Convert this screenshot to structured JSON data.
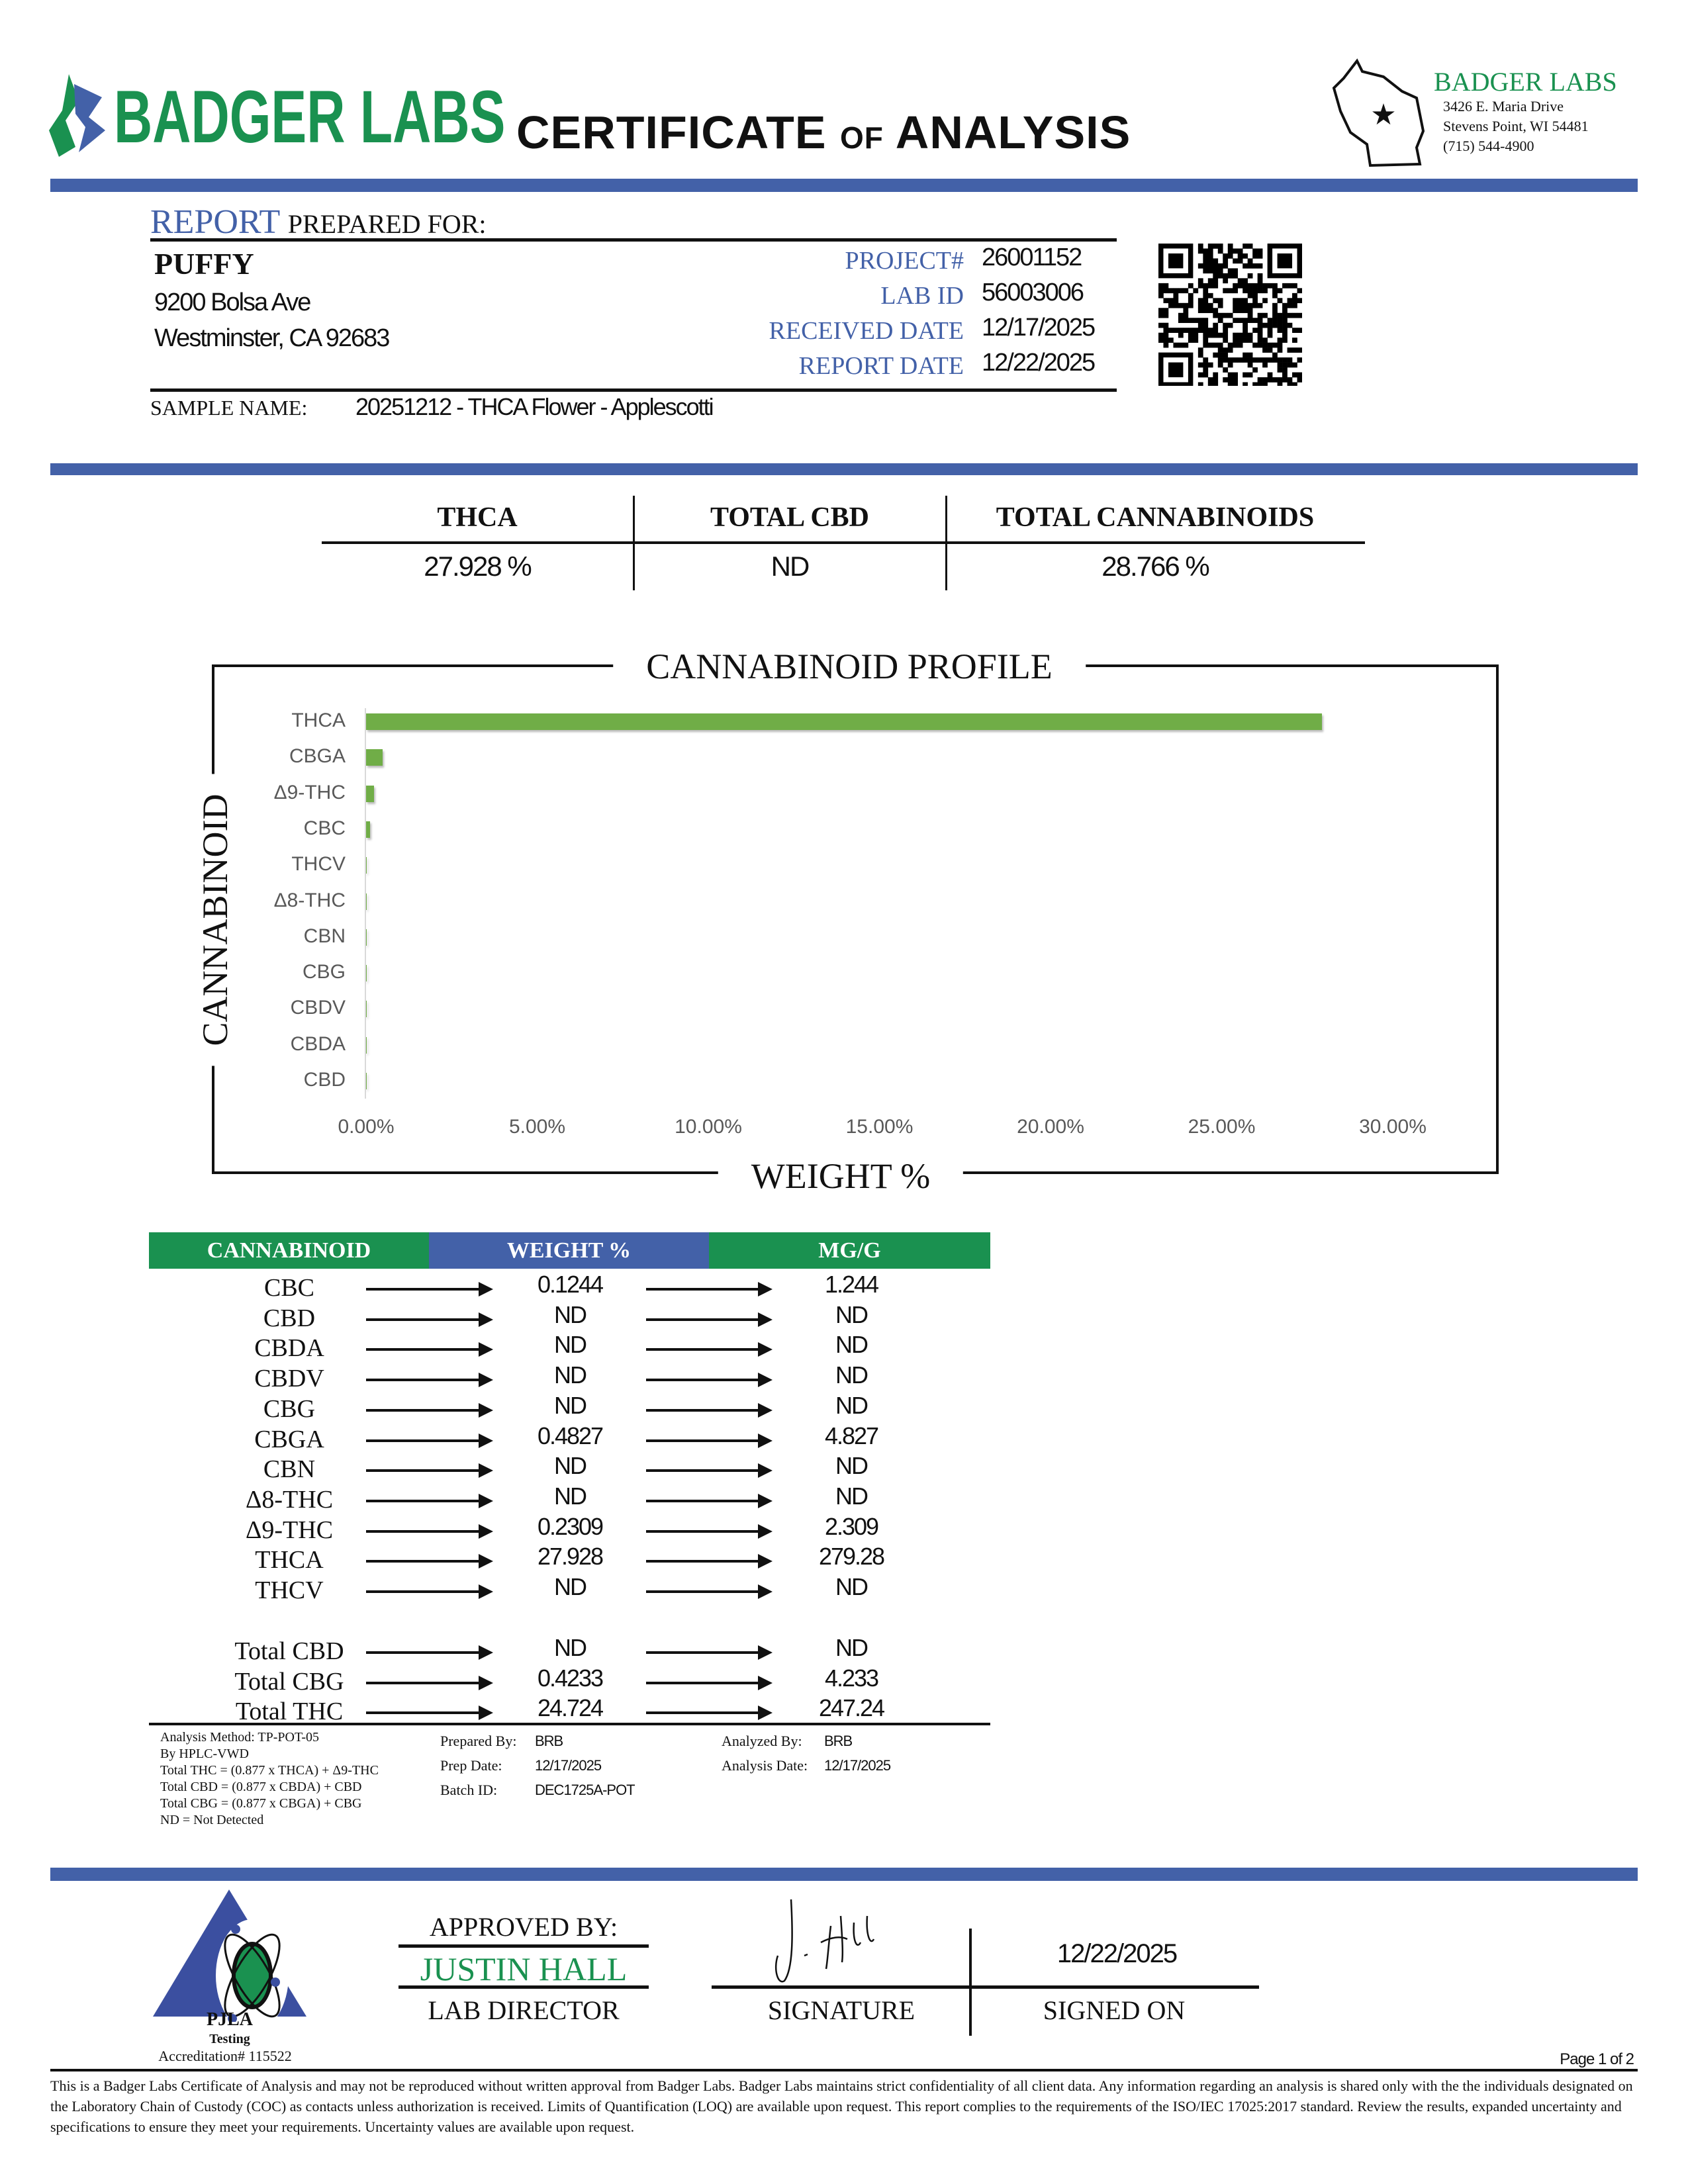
{
  "header": {
    "brand": "BADGER LABS",
    "title_a": "CERTIFICATE",
    "title_of": "OF",
    "title_b": "ANALYSIS",
    "address": {
      "name": "BADGER LABS",
      "street": "3426 E. Maria Drive",
      "city": "Stevens Point, WI 54481",
      "phone": "(715) 544-4900"
    }
  },
  "report": {
    "label_a": "REPORT",
    "label_b": "PREPARED FOR:",
    "client": "PUFFY",
    "address1": "9200 Bolsa Ave",
    "address2": "Westminster, CA 92683",
    "fields": [
      {
        "label": "PROJECT#",
        "value": "26001152"
      },
      {
        "label": "LAB ID",
        "value": "56003006"
      },
      {
        "label": "RECEIVED DATE",
        "value": "12/17/2025"
      },
      {
        "label": "REPORT DATE",
        "value": "12/22/2025"
      }
    ],
    "sample_label": "SAMPLE NAME:",
    "sample_name": "20251212 - THCA Flower - Applescotti"
  },
  "summary": [
    {
      "label": "THCA",
      "value": "27.928 %"
    },
    {
      "label": "TOTAL CBD",
      "value": "ND"
    },
    {
      "label": "TOTAL CANNABINOIDS",
      "value": "28.766 %"
    }
  ],
  "chart_data": {
    "type": "bar",
    "orientation": "horizontal",
    "title": "CANNABINOID PROFILE",
    "xlabel": "WEIGHT %",
    "ylabel": "CANNABINOID",
    "categories": [
      "THCA",
      "CBGA",
      "Δ9-THC",
      "CBC",
      "THCV",
      "Δ8-THC",
      "CBN",
      "CBG",
      "CBDV",
      "CBDA",
      "CBD"
    ],
    "values": [
      27.928,
      0.4827,
      0.2309,
      0.1244,
      0,
      0,
      0,
      0,
      0,
      0,
      0
    ],
    "xlim": [
      0,
      30
    ],
    "ticks": [
      "0.00%",
      "5.00%",
      "10.00%",
      "15.00%",
      "20.00%",
      "25.00%",
      "30.00%"
    ],
    "bar_color": "#70ad47",
    "grid": false,
    "legend": "none"
  },
  "table": {
    "headers": [
      "CANNABINOID",
      "WEIGHT %",
      "MG/G"
    ],
    "header_colors": [
      "#1a9150",
      "#4361a8",
      "#1a9150"
    ],
    "rows": [
      [
        "CBC",
        "0.1244",
        "1.244"
      ],
      [
        "CBD",
        "ND",
        "ND"
      ],
      [
        "CBDA",
        "ND",
        "ND"
      ],
      [
        "CBDV",
        "ND",
        "ND"
      ],
      [
        "CBG",
        "ND",
        "ND"
      ],
      [
        "CBGA",
        "0.4827",
        "4.827"
      ],
      [
        "CBN",
        "ND",
        "ND"
      ],
      [
        "Δ8-THC",
        "ND",
        "ND"
      ],
      [
        "Δ9-THC",
        "0.2309",
        "2.309"
      ],
      [
        "THCA",
        "27.928",
        "279.28"
      ],
      [
        "THCV",
        "ND",
        "ND"
      ]
    ],
    "totals": [
      [
        "Total CBD",
        "ND",
        "ND"
      ],
      [
        "Total CBG",
        "0.4233",
        "4.233"
      ],
      [
        "Total THC",
        "24.724",
        "247.24"
      ]
    ]
  },
  "notes": {
    "lines": [
      "Analysis Method: TP-POT-05",
      "By HPLC-VWD",
      "Total THC = (0.877 x  THCA) + Δ9-THC",
      "Total CBD = (0.877 x  CBDA) + CBD",
      "Total CBG = (0.877 x  CBGA) + CBG",
      "ND = Not Detected"
    ],
    "prepared_by_label": "Prepared By:",
    "prepared_by": "BRB",
    "prep_date_label": "Prep Date:",
    "prep_date": "12/17/2025",
    "batch_label": "Batch ID:",
    "batch": "DEC1725A-POT",
    "analyzed_by_label": "Analyzed By:",
    "analyzed_by": "BRB",
    "analysis_date_label": "Analysis Date:",
    "analysis_date": "12/17/2025"
  },
  "footer": {
    "pjla": "PJLA",
    "testing": "Testing",
    "accreditation": "Accreditation# 115522",
    "approved_label": "APPROVED BY:",
    "approver": "JUSTIN HALL",
    "role": "LAB DIRECTOR",
    "signature_label": "SIGNATURE",
    "signed_on_label": "SIGNED ON",
    "signed_date": "12/22/2025",
    "page": "Page 1 of 2",
    "disclaimer": "This is a Badger Labs Certificate of Analysis and may not be reproduced without written approval from Badger Labs. Badger Labs maintains strict confidentiality of all client data. Any information regarding an analysis is shared only with the the individuals designated on the Laboratory Chain of Custody (COC) as contacts unless authorization is received. Limits of Quantification (LOQ) are available upon request. This report complies to the requirements of the ISO/IEC 17025:2017 standard. Review the results, expanded uncertainty and specifications to ensure they meet your requirements. Uncertainty values are available upon request."
  }
}
